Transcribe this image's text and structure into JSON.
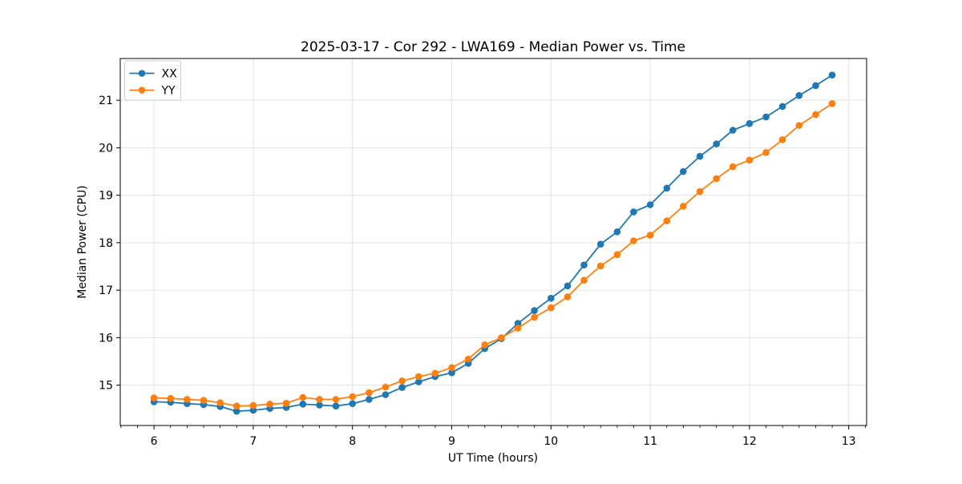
{
  "chart_data": {
    "type": "line",
    "title": "2025-03-17 - Cor 292 - LWA169 - Median Power vs. Time",
    "xlabel": "UT Time (hours)",
    "ylabel": "Median Power (CPU)",
    "x": [
      6,
      6.167,
      6.333,
      6.5,
      6.667,
      6.833,
      7,
      7.167,
      7.333,
      7.5,
      7.667,
      7.833,
      8,
      8.167,
      8.333,
      8.5,
      8.667,
      8.833,
      9,
      9.167,
      9.333,
      9.5,
      9.667,
      9.833,
      10,
      10.167,
      10.333,
      10.5,
      10.667,
      10.833,
      11,
      11.167,
      11.333,
      11.5,
      11.667,
      11.833,
      12,
      12.167,
      12.333,
      12.5,
      12.667,
      12.833
    ],
    "series": [
      {
        "name": "XX",
        "color": "#1f77b4",
        "values": [
          14.65,
          14.64,
          14.61,
          14.59,
          14.55,
          14.45,
          14.47,
          14.51,
          14.53,
          14.6,
          14.58,
          14.56,
          14.61,
          14.7,
          14.8,
          14.95,
          15.07,
          15.18,
          15.26,
          15.46,
          15.77,
          15.98,
          16.3,
          16.57,
          16.83,
          17.09,
          17.53,
          17.97,
          18.23,
          18.65,
          18.8,
          19.15,
          19.5,
          19.82,
          20.08,
          20.37,
          20.51,
          20.65,
          20.87,
          21.1,
          21.31,
          21.53
        ]
      },
      {
        "name": "YY",
        "color": "#ff7f0e",
        "values": [
          14.73,
          14.72,
          14.7,
          14.68,
          14.63,
          14.56,
          14.57,
          14.6,
          14.62,
          14.74,
          14.7,
          14.7,
          14.76,
          14.84,
          14.96,
          15.09,
          15.18,
          15.25,
          15.37,
          15.55,
          15.85,
          16.0,
          16.2,
          16.43,
          16.63,
          16.86,
          17.21,
          17.51,
          17.75,
          18.04,
          18.16,
          18.46,
          18.77,
          19.08,
          19.35,
          19.6,
          19.74,
          19.9,
          20.17,
          20.47,
          20.7,
          20.93
        ]
      }
    ],
    "xlim": [
      5.66,
      13.18
    ],
    "ylim": [
      14.15,
      21.88
    ],
    "xticks": [
      6,
      7,
      8,
      9,
      10,
      11,
      12,
      13
    ],
    "yticks": [
      15,
      16,
      17,
      18,
      19,
      20,
      21
    ],
    "x_minor_step": 0.16667,
    "grid": true,
    "grid_color": "#e2e2e2",
    "legend_position": "upper left",
    "legend_entries": [
      "XX",
      "YY"
    ]
  }
}
